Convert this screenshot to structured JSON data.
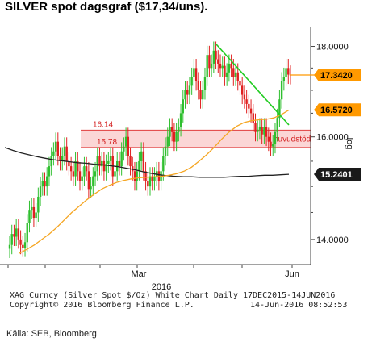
{
  "header": {
    "title": "SILVER spot  dagsgraf ($17,34/uns)."
  },
  "chart_data": {
    "type": "candlestick",
    "title": "SILVER spot  dagsgraf ($17,34/uns).",
    "ylabel": "log",
    "ylim": [
      13.55,
      18.45
    ],
    "y_ticks": [
      "18.0000",
      "16.0000",
      "14.0000"
    ],
    "x_ticks": [
      "Mar",
      "Jun"
    ],
    "x_year": "2016",
    "scale": "log",
    "grid": false,
    "price_tags": [
      {
        "label": "17.3420",
        "value": 17.342,
        "color": "#ff9900"
      },
      {
        "label": "16.5720",
        "value": 16.572,
        "color": "#ff9900"
      },
      {
        "label": "15.2401",
        "value": 15.2401,
        "color": "#1a1a1a"
      }
    ],
    "zone": {
      "upper_label": "16.14",
      "lower_label": "15.78",
      "upper": 16.14,
      "lower": 15.78,
      "fill": "#fbd6d6",
      "stroke": "#e03c3c"
    },
    "zone_annotation": "huvudstöd",
    "colors": {
      "up": "#2fbf2f",
      "down": "#e02020",
      "ma_short": "#f5a623",
      "ma_long": "#222222",
      "trend": "#22cc22",
      "zone": "#e03c3c"
    },
    "candles_close": [
      13.9,
      14.1,
      14.05,
      14.2,
      14.0,
      13.9,
      13.85,
      13.95,
      14.3,
      14.55,
      14.6,
      14.4,
      14.5,
      14.8,
      15.0,
      15.1,
      15.0,
      15.2,
      15.4,
      15.6,
      15.7,
      15.9,
      15.6,
      15.5,
      15.6,
      15.8,
      15.5,
      15.4,
      15.3,
      15.2,
      15.5,
      15.3,
      15.1,
      15.2,
      15.4,
      15.3,
      14.95,
      15.0,
      15.2,
      15.3,
      15.6,
      15.4,
      15.5,
      15.3,
      15.45,
      15.5,
      15.6,
      15.2,
      15.3,
      15.5,
      15.4,
      15.7,
      15.8,
      16.0,
      15.6,
      15.4,
      15.3,
      15.1,
      15.3,
      15.5,
      15.7,
      15.3,
      15.1,
      15.0,
      15.2,
      15.1,
      15.2,
      15.3,
      15.1,
      15.3,
      15.6,
      15.8,
      16.0,
      16.2,
      16.1,
      15.9,
      16.1,
      16.2,
      16.5,
      16.8,
      17.0,
      16.9,
      17.1,
      17.3,
      17.5,
      17.2,
      17.0,
      16.8,
      17.0,
      17.3,
      17.8,
      17.5,
      17.6,
      17.9,
      17.7,
      17.6,
      17.5,
      17.55,
      17.3,
      17.4,
      17.6,
      17.5,
      17.3,
      17.4,
      17.2,
      17.1,
      16.9,
      16.8,
      16.7,
      16.6,
      16.5,
      16.3,
      16.1,
      16.15,
      16.2,
      16.05,
      16.2,
      16.0,
      15.9,
      15.8,
      15.85,
      16.1,
      16.4,
      16.8,
      17.2,
      17.3,
      17.5,
      17.35,
      17.34
    ],
    "series": [
      {
        "name": "",
        "values_ma_short": [
          13.75,
          13.82,
          13.9,
          14.0,
          14.1,
          14.22,
          14.36,
          14.5,
          14.62,
          14.74,
          14.85,
          14.95,
          15.02,
          15.08,
          15.12,
          15.15,
          15.17,
          15.18,
          15.19,
          15.2,
          15.22,
          15.25,
          15.3,
          15.38,
          15.5,
          15.63,
          15.78,
          15.95,
          16.1,
          16.22,
          16.3,
          16.34,
          16.36,
          16.37,
          16.4,
          16.47,
          16.57
        ]
      },
      {
        "name": "",
        "values_ma_long": [
          15.78,
          15.72,
          15.67,
          15.63,
          15.59,
          15.56,
          15.53,
          15.51,
          15.49,
          15.47,
          15.46,
          15.44,
          15.43,
          15.41,
          15.39,
          15.36,
          15.33,
          15.29,
          15.26,
          15.23,
          15.21,
          15.2,
          15.19,
          15.19,
          15.18,
          15.18,
          15.18,
          15.18,
          15.19,
          15.2,
          15.2,
          15.21,
          15.22,
          15.22,
          15.23,
          15.24
        ]
      }
    ]
  },
  "footer": {
    "line1": "XAG Curncy (Silver Spot  $/Oz) White Chart  Daily 17DEC2015-14JUN2016",
    "line2_left": "Copyright© 2016 Bloomberg Finance L.P.",
    "line2_right": "14-Jun-2016 08:52:53"
  },
  "source": "Källa: SEB, Bloomberg"
}
